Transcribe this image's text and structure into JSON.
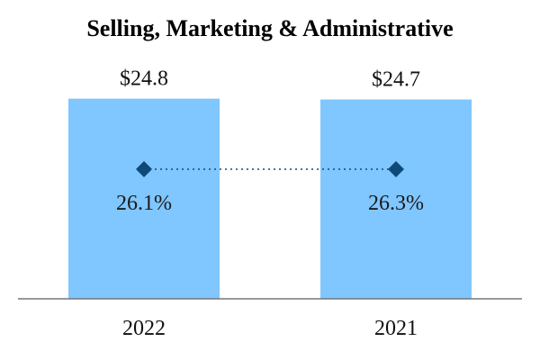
{
  "chart_data": {
    "type": "bar",
    "title": "Selling, Marketing & Administrative",
    "categories": [
      "2022",
      "2021"
    ],
    "values": [
      24.8,
      24.7
    ],
    "value_labels": [
      "$24.8",
      "$24.7"
    ],
    "line_series": {
      "values": [
        26.1,
        26.3
      ],
      "labels": [
        "26.1%",
        "26.3%"
      ],
      "marker": "diamond",
      "line_style": "dotted"
    },
    "xlabel": "",
    "ylabel": "",
    "ylim": [
      0,
      26.1
    ],
    "grid": false,
    "legend": "none",
    "colors": {
      "bar": "#80c6ff",
      "marker": "#0d4a7a",
      "baseline": "#777777",
      "text": "#111111"
    }
  }
}
